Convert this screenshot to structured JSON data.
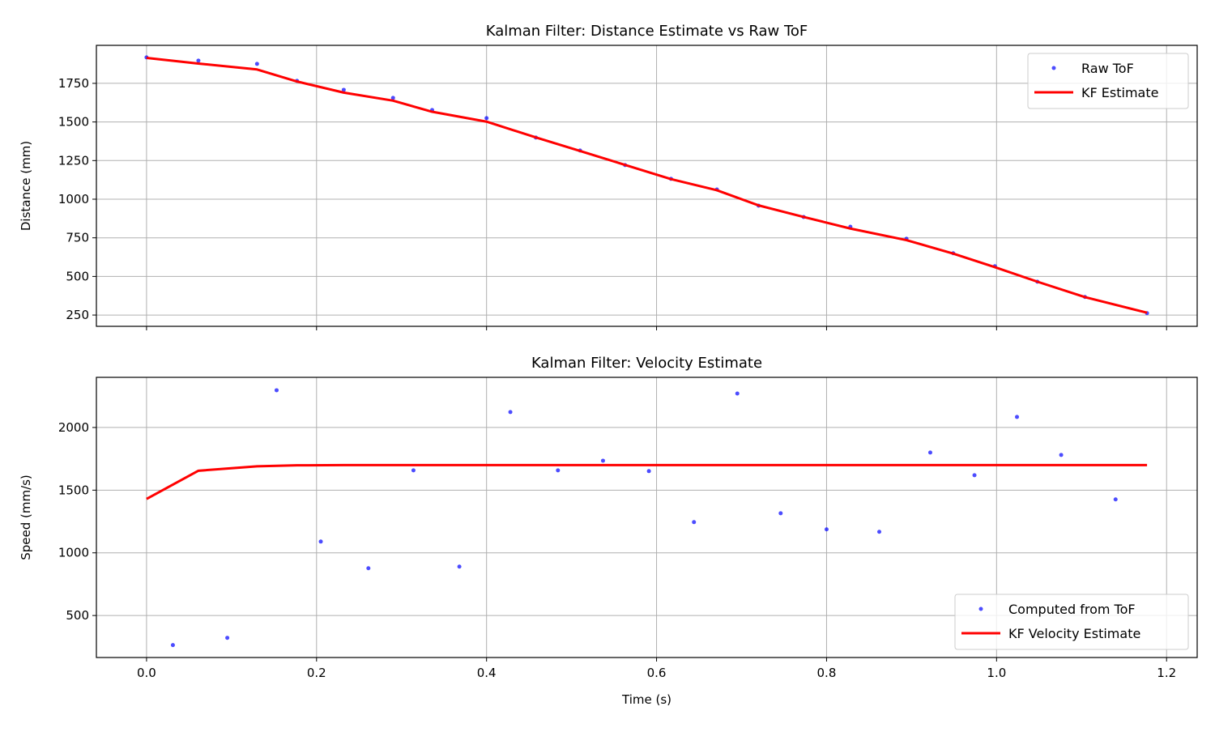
{
  "chart_data": [
    {
      "type": "line",
      "title": "Kalman Filter: Distance Estimate vs Raw ToF",
      "xlabel": "",
      "ylabel": "Distance (mm)",
      "xlim": [
        -0.059,
        1.236
      ],
      "ylim": [
        177,
        1996
      ],
      "xticks": [
        0.0,
        0.2,
        0.4,
        0.6,
        0.8,
        1.0,
        1.2
      ],
      "show_xtick_labels": false,
      "yticks": [
        250,
        500,
        750,
        1000,
        1250,
        1500,
        1750
      ],
      "grid": true,
      "legend": "top-right",
      "series": [
        {
          "name": "Raw ToF",
          "style": "points",
          "color": "#0000ff",
          "x": [
            0,
            0.061,
            0.13,
            0.177,
            0.232,
            0.29,
            0.336,
            0.4,
            0.458,
            0.51,
            0.563,
            0.617,
            0.671,
            0.72,
            0.773,
            0.828,
            0.894,
            0.949,
            0.998,
            1.048,
            1.104,
            1.177
          ],
          "y": [
            1918,
            1897,
            1876,
            1766,
            1708,
            1656,
            1577,
            1525,
            1399,
            1315,
            1221,
            1132,
            1063,
            958,
            885,
            822,
            744,
            650,
            566,
            466,
            367,
            262
          ]
        },
        {
          "name": "KF Estimate",
          "style": "line",
          "color": "#ff0000",
          "x": [
            0,
            0.061,
            0.13,
            0.177,
            0.232,
            0.29,
            0.336,
            0.4,
            0.458,
            0.51,
            0.563,
            0.617,
            0.671,
            0.72,
            0.773,
            0.828,
            0.894,
            0.949,
            0.998,
            1.048,
            1.104,
            1.177
          ],
          "y": [
            1915,
            1878,
            1840,
            1762,
            1690,
            1638,
            1566,
            1502,
            1400,
            1312,
            1222,
            1130,
            1058,
            960,
            885,
            810,
            735,
            648,
            560,
            466,
            366,
            265
          ]
        }
      ]
    },
    {
      "type": "line",
      "title": "Kalman Filter: Velocity Estimate",
      "xlabel": "Time (s)",
      "ylabel": "Speed (mm/s)",
      "xlim": [
        -0.059,
        1.236
      ],
      "ylim": [
        165,
        2400
      ],
      "xticks": [
        0.0,
        0.2,
        0.4,
        0.6,
        0.8,
        1.0,
        1.2
      ],
      "xtick_labels": [
        "0.0",
        "0.2",
        "0.4",
        "0.6",
        "0.8",
        "1.0",
        "1.2"
      ],
      "show_xtick_labels": true,
      "yticks": [
        500,
        1000,
        1500,
        2000
      ],
      "grid": true,
      "legend": "bottom-right",
      "series": [
        {
          "name": "Computed from ToF",
          "style": "points",
          "color": "#0000ff",
          "x": [
            0.031,
            0.095,
            0.153,
            0.205,
            0.261,
            0.314,
            0.368,
            0.428,
            0.484,
            0.537,
            0.591,
            0.644,
            0.695,
            0.746,
            0.8,
            0.862,
            0.922,
            0.974,
            1.024,
            1.076,
            1.14
          ],
          "y": [
            264,
            322,
            2297,
            1090,
            877,
            1658,
            890,
            2123,
            1658,
            1735,
            1652,
            1245,
            2271,
            1316,
            1187,
            1168,
            1800,
            1619,
            2084,
            1781,
            1426
          ]
        },
        {
          "name": "KF Velocity Estimate",
          "style": "line",
          "color": "#ff0000",
          "x": [
            0,
            0.061,
            0.13,
            0.177,
            0.232,
            0.29,
            0.336,
            0.4,
            0.458,
            0.51,
            0.563,
            0.617,
            0.671,
            0.72,
            0.773,
            0.828,
            0.894,
            0.949,
            0.998,
            1.048,
            1.104,
            1.177
          ],
          "y": [
            1430,
            1655,
            1690,
            1698,
            1700,
            1700,
            1700,
            1700,
            1700,
            1700,
            1700,
            1700,
            1700,
            1700,
            1700,
            1700,
            1700,
            1700,
            1700,
            1700,
            1700,
            1700
          ]
        }
      ]
    }
  ]
}
